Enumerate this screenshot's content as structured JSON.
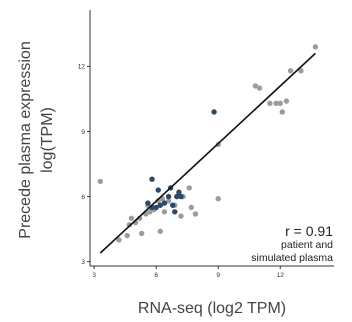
{
  "chart_data": {
    "type": "scatter",
    "xlabel": "RNA-seq (log2 TPM)",
    "ylabel_line1": "Precede plasma expression",
    "ylabel_line2": "log(TPM)",
    "xlim": [
      2.8,
      14.6
    ],
    "ylim": [
      2.8,
      14.6
    ],
    "x_ticks": [
      3,
      6,
      9,
      12
    ],
    "y_ticks": [
      3,
      6,
      9,
      12
    ],
    "x_tick_labels": [
      "3",
      "6",
      "9",
      "12"
    ],
    "y_tick_labels": [
      "3",
      "6",
      "9",
      "12"
    ],
    "grid": false,
    "annotation": {
      "r_text": "r = 0.91",
      "line1": "patient and",
      "line2": "simulated plasma"
    },
    "trendline": {
      "x": [
        3.3,
        13.7
      ],
      "y": [
        3.4,
        12.6
      ]
    },
    "colors": {
      "gray_points": "#9c9c9c",
      "navy_points": "#2b4a68",
      "trendline": "#111111",
      "axis": "#333333"
    },
    "series": [
      {
        "color": "gray",
        "points": [
          [
            3.3,
            6.7
          ],
          [
            4.2,
            4.0
          ],
          [
            4.6,
            4.2
          ],
          [
            4.7,
            4.7
          ],
          [
            4.8,
            5.0
          ],
          [
            5.0,
            4.8
          ],
          [
            5.2,
            5.0
          ],
          [
            5.3,
            4.3
          ],
          [
            5.5,
            5.2
          ],
          [
            5.6,
            5.6
          ],
          [
            5.7,
            5.3
          ],
          [
            5.9,
            5.4
          ],
          [
            6.1,
            5.8
          ],
          [
            6.2,
            4.4
          ],
          [
            6.3,
            5.9
          ],
          [
            6.4,
            5.3
          ],
          [
            6.6,
            5.8
          ],
          [
            6.9,
            5.6
          ],
          [
            7.0,
            6.0
          ],
          [
            7.2,
            5.1
          ],
          [
            7.3,
            6.0
          ],
          [
            7.6,
            6.4
          ],
          [
            7.7,
            5.5
          ],
          [
            7.9,
            5.2
          ],
          [
            9.0,
            5.9
          ],
          [
            9.0,
            8.4
          ],
          [
            10.8,
            11.1
          ],
          [
            11.0,
            11.0
          ],
          [
            11.5,
            10.3
          ],
          [
            11.8,
            10.3
          ],
          [
            12.0,
            10.3
          ],
          [
            12.1,
            9.9
          ],
          [
            12.3,
            10.4
          ],
          [
            12.5,
            11.8
          ],
          [
            13.0,
            11.8
          ],
          [
            13.7,
            12.9
          ]
        ]
      },
      {
        "color": "navy",
        "points": [
          [
            5.6,
            5.7
          ],
          [
            5.8,
            6.8
          ],
          [
            5.8,
            5.5
          ],
          [
            6.0,
            5.5
          ],
          [
            6.1,
            6.3
          ],
          [
            6.2,
            5.6
          ],
          [
            6.4,
            5.7
          ],
          [
            6.6,
            6.0
          ],
          [
            6.7,
            6.4
          ],
          [
            6.8,
            5.6
          ],
          [
            6.9,
            5.3
          ],
          [
            7.0,
            6.0
          ],
          [
            7.1,
            6.2
          ],
          [
            7.2,
            6.0
          ],
          [
            8.8,
            9.9
          ]
        ]
      }
    ]
  }
}
